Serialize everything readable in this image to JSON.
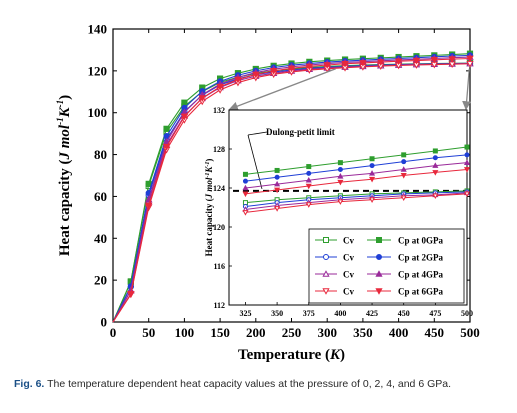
{
  "caption": {
    "label": "Fig. 6.",
    "text": "The temperature dependent heat capacity values at the pressure of 0, 2, 4, and 6 GPa."
  },
  "chart_data": {
    "type": "line",
    "xlabel": "Temperature (K)",
    "ylabel": "Heat capacity (J mol⁻¹K⁻¹)",
    "xlim": [
      0,
      500
    ],
    "ylim": [
      0,
      140
    ],
    "xticks": [
      0,
      50,
      100,
      150,
      200,
      250,
      300,
      350,
      400,
      450,
      500
    ],
    "yticks": [
      0,
      20,
      40,
      60,
      80,
      100,
      120,
      140
    ],
    "x": [
      0,
      25,
      50,
      75,
      100,
      125,
      150,
      175,
      200,
      225,
      250,
      275,
      300,
      325,
      350,
      375,
      400,
      425,
      450,
      475,
      500
    ],
    "series": [
      {
        "name": "Cv",
        "pressure": "0GPa",
        "color": "#2e9e2e",
        "marker": "square-open",
        "values": [
          0,
          19.2,
          65.0,
          90.8,
          103.0,
          110.1,
          114.5,
          117.0,
          118.8,
          120.0,
          120.9,
          121.6,
          122.1,
          122.5,
          122.8,
          123.0,
          123.2,
          123.4,
          123.5,
          123.6,
          123.7
        ]
      },
      {
        "name": "Cp at 0GPa",
        "color": "#2e9e2e",
        "marker": "square",
        "values": [
          0,
          19.4,
          66.0,
          92.3,
          104.8,
          112.0,
          116.3,
          118.9,
          120.9,
          122.4,
          123.5,
          124.3,
          124.9,
          125.4,
          125.8,
          126.2,
          126.6,
          127.0,
          127.4,
          127.8,
          128.2
        ]
      },
      {
        "name": "Cv",
        "pressure": "2GPa",
        "color": "#1f3fd6",
        "marker": "circle-open",
        "values": [
          0,
          16.9,
          60.5,
          87.2,
          100.5,
          108.4,
          113.3,
          116.2,
          118.2,
          119.5,
          120.4,
          121.2,
          121.7,
          122.1,
          122.5,
          122.8,
          123.0,
          123.2,
          123.4,
          123.5,
          123.6
        ]
      },
      {
        "name": "Cp at 2GPa",
        "color": "#1f3fd6",
        "marker": "circle",
        "values": [
          0,
          17.1,
          61.6,
          88.8,
          102.3,
          110.3,
          115.0,
          117.9,
          120.0,
          121.6,
          122.7,
          123.5,
          124.2,
          124.7,
          125.1,
          125.5,
          125.9,
          126.3,
          126.7,
          127.1,
          127.4
        ]
      },
      {
        "name": "Cv",
        "pressure": "4GPa",
        "color": "#9a2a9a",
        "marker": "triangle-open",
        "values": [
          0,
          15.0,
          57.6,
          84.6,
          98.5,
          106.9,
          112.1,
          115.4,
          117.5,
          118.9,
          120.0,
          120.8,
          121.4,
          121.8,
          122.2,
          122.5,
          122.8,
          123.0,
          123.2,
          123.3,
          123.5
        ]
      },
      {
        "name": "Cp at 4GPa",
        "color": "#9a2a9a",
        "marker": "triangle",
        "values": [
          0,
          15.2,
          58.6,
          86.1,
          100.2,
          108.6,
          113.7,
          116.9,
          119.2,
          120.8,
          121.9,
          122.8,
          123.5,
          124.0,
          124.4,
          124.8,
          125.2,
          125.5,
          125.9,
          126.3,
          126.6
        ]
      },
      {
        "name": "Cv",
        "pressure": "6GPa",
        "color": "#e8283c",
        "marker": "triangle-down-open",
        "values": [
          0,
          13.2,
          54.8,
          82.3,
          96.6,
          105.4,
          110.9,
          114.4,
          116.8,
          118.4,
          119.5,
          120.4,
          121.0,
          121.5,
          121.9,
          122.3,
          122.6,
          122.8,
          123.0,
          123.2,
          123.4
        ]
      },
      {
        "name": "Cp at 6GPa",
        "color": "#e8283c",
        "marker": "triangle-down",
        "values": [
          0,
          13.4,
          55.7,
          83.7,
          98.2,
          107.0,
          112.4,
          115.9,
          118.3,
          120.0,
          121.2,
          122.1,
          122.8,
          123.4,
          123.8,
          124.2,
          124.6,
          124.9,
          125.3,
          125.6,
          125.9
        ]
      }
    ],
    "inset": {
      "xlim": [
        312,
        500
      ],
      "ylim": [
        112,
        132
      ],
      "xticks": [
        325,
        350,
        375,
        400,
        425,
        450,
        475,
        500
      ],
      "yticks": [
        112,
        116,
        120,
        124,
        128,
        132
      ],
      "ylabel": "Heat capacity (J mol⁻¹K⁻¹)",
      "reference_line": {
        "label": "Dulong-petit limit",
        "value": 123.7,
        "style": "dashed"
      },
      "legend": {
        "placement": "bottom-right",
        "rows": [
          {
            "cv": "Cv",
            "cp": "Cp at 0GPa"
          },
          {
            "cv": "Cv",
            "cp": "Cp at 2GPa"
          },
          {
            "cv": "Cv",
            "cp": "Cp at 4GPa"
          },
          {
            "cv": "Cv",
            "cp": "Cp at 6GPa"
          }
        ]
      }
    }
  }
}
